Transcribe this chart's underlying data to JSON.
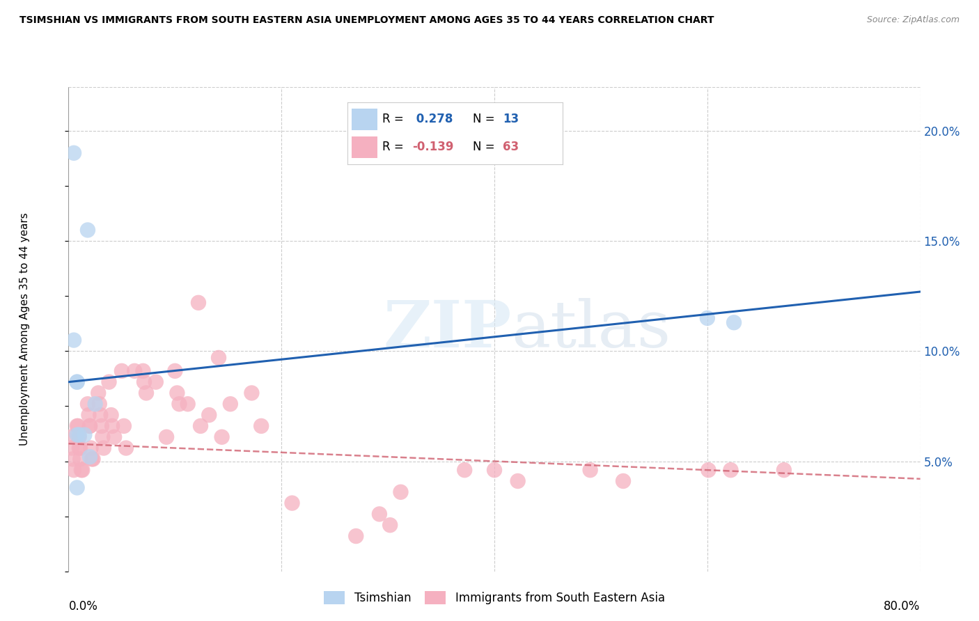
{
  "title": "TSIMSHIAN VS IMMIGRANTS FROM SOUTH EASTERN ASIA UNEMPLOYMENT AMONG AGES 35 TO 44 YEARS CORRELATION CHART",
  "source": "Source: ZipAtlas.com",
  "ylabel": "Unemployment Among Ages 35 to 44 years",
  "right_yticks": [
    "20.0%",
    "15.0%",
    "10.0%",
    "5.0%"
  ],
  "right_ytick_vals": [
    0.2,
    0.15,
    0.1,
    0.05
  ],
  "xmin": 0.0,
  "xmax": 0.8,
  "ymin": 0.0,
  "ymax": 0.22,
  "blue_R": 0.278,
  "blue_N": 13,
  "pink_R": -0.139,
  "pink_N": 63,
  "legend_label_blue": "Tsimshian",
  "legend_label_pink": "Immigrants from South Eastern Asia",
  "blue_color": "#b8d4f0",
  "blue_line_color": "#2060b0",
  "pink_color": "#f5b0c0",
  "pink_line_color": "#d06070",
  "watermark_zip": "ZIP",
  "watermark_atlas": "atlas",
  "blue_scatter_x": [
    0.005,
    0.018,
    0.005,
    0.008,
    0.008,
    0.008,
    0.01,
    0.015,
    0.02,
    0.025,
    0.6,
    0.625,
    0.008
  ],
  "blue_scatter_y": [
    0.19,
    0.155,
    0.105,
    0.086,
    0.086,
    0.062,
    0.062,
    0.062,
    0.052,
    0.076,
    0.115,
    0.113,
    0.038
  ],
  "pink_scatter_x": [
    0.002,
    0.003,
    0.004,
    0.005,
    0.008,
    0.009,
    0.01,
    0.01,
    0.011,
    0.011,
    0.012,
    0.013,
    0.018,
    0.019,
    0.02,
    0.02,
    0.021,
    0.022,
    0.023,
    0.028,
    0.029,
    0.03,
    0.031,
    0.032,
    0.033,
    0.038,
    0.04,
    0.041,
    0.043,
    0.05,
    0.052,
    0.054,
    0.062,
    0.07,
    0.071,
    0.073,
    0.082,
    0.092,
    0.1,
    0.102,
    0.104,
    0.112,
    0.122,
    0.124,
    0.132,
    0.141,
    0.144,
    0.152,
    0.172,
    0.181,
    0.21,
    0.27,
    0.292,
    0.302,
    0.312,
    0.372,
    0.4,
    0.422,
    0.49,
    0.521,
    0.601,
    0.622,
    0.672
  ],
  "pink_scatter_y": [
    0.061,
    0.056,
    0.051,
    0.046,
    0.066,
    0.066,
    0.061,
    0.056,
    0.056,
    0.051,
    0.046,
    0.046,
    0.076,
    0.071,
    0.066,
    0.066,
    0.056,
    0.051,
    0.051,
    0.081,
    0.076,
    0.071,
    0.066,
    0.061,
    0.056,
    0.086,
    0.071,
    0.066,
    0.061,
    0.091,
    0.066,
    0.056,
    0.091,
    0.091,
    0.086,
    0.081,
    0.086,
    0.061,
    0.091,
    0.081,
    0.076,
    0.076,
    0.122,
    0.066,
    0.071,
    0.097,
    0.061,
    0.076,
    0.081,
    0.066,
    0.031,
    0.016,
    0.026,
    0.021,
    0.036,
    0.046,
    0.046,
    0.041,
    0.046,
    0.041,
    0.046,
    0.046,
    0.046
  ],
  "blue_line_x": [
    0.0,
    0.8
  ],
  "blue_line_y": [
    0.086,
    0.127
  ],
  "pink_line_x": [
    0.0,
    0.8
  ],
  "pink_line_y": [
    0.058,
    0.042
  ],
  "grid_color": "#cccccc",
  "background_color": "#ffffff"
}
